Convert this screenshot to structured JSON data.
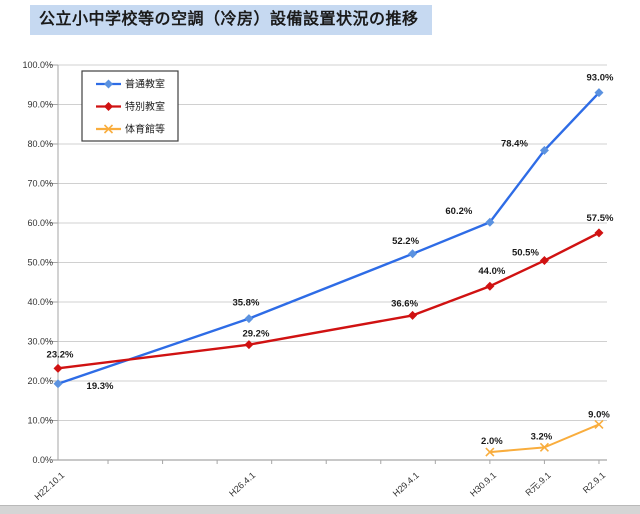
{
  "title": "公立小中学校等の空調（冷房）設備設置状況の推移",
  "colors": {
    "title_bg": "#c6d9f1",
    "blue_line": "#2e6ce6",
    "blue_marker": "#5b92e0",
    "red_line": "#d01212",
    "orange_line": "#f9ad3d",
    "grid": "#d0d0d0",
    "axis": "#a6a6a6",
    "tick_text": "#333333",
    "data_label_text": "#1a1a1a",
    "legend_border": "#3f3f3f",
    "footer_bar": "#d5d5d5"
  },
  "chart_data": {
    "type": "line",
    "title": "公立小中学校等の空調（冷房）設備設置状況の推移",
    "x_tick_labels": [
      "H22.10.1",
      "H26.4.1",
      "H29.4.1",
      "H30.9.1",
      "R元.9.1",
      "R2.9.1"
    ],
    "x_years": [
      2010.75,
      2014.25,
      2017.25,
      2018.667,
      2019.667,
      2020.667
    ],
    "y_tick_labels": [
      "100.0%",
      "90.0%",
      "80.0%",
      "70.0%",
      "60.0%",
      "50.0%",
      "40.0%",
      "30.0%",
      "20.0%",
      "10.0%",
      "0.0%"
    ],
    "ylim": [
      0,
      100
    ],
    "grid": true,
    "legend_position": "top-left",
    "series": [
      {
        "name": "普通教室",
        "marker": "diamond",
        "color_key": "blue",
        "values": [
          19.3,
          35.8,
          52.2,
          60.2,
          78.4,
          93.0
        ],
        "labels": [
          "19.3%",
          "35.8%",
          "52.2%",
          "60.2%",
          "78.4%",
          "93.0%"
        ]
      },
      {
        "name": "特別教室",
        "marker": "diamond",
        "color_key": "red",
        "values": [
          23.2,
          29.2,
          36.6,
          44.0,
          50.5,
          57.5
        ],
        "labels": [
          "23.2%",
          "29.2%",
          "36.6%",
          "44.0%",
          "50.5%",
          "57.5%"
        ]
      },
      {
        "name": "体育館等",
        "marker": "x",
        "color_key": "orange",
        "values": [
          null,
          null,
          null,
          2.0,
          3.2,
          9.0
        ],
        "labels": [
          null,
          null,
          null,
          "2.0%",
          "3.2%",
          "9.0%"
        ]
      }
    ]
  }
}
